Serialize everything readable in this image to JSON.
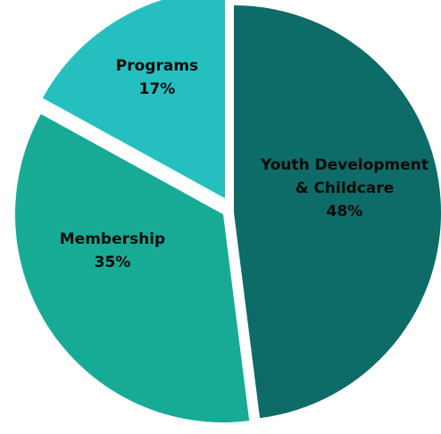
{
  "chart_data": {
    "type": "pie",
    "categories": [
      "Youth Development & Childcare",
      "Membership",
      "Programs"
    ],
    "values": [
      48,
      35,
      17
    ],
    "slices": [
      {
        "name": "Youth Development & Childcare",
        "value": 48,
        "label_lines": [
          "Youth Development",
          "& Childcare",
          "48%"
        ],
        "color": "#0d6b68"
      },
      {
        "name": "Membership",
        "value": 35,
        "label_lines": [
          "Membership",
          "35%"
        ],
        "color": "#17ab96"
      },
      {
        "name": "Programs",
        "value": 17,
        "label_lines": [
          "Programs",
          "17%"
        ],
        "color": "#26bfbf"
      }
    ],
    "title": "",
    "legend": "none",
    "exploded": true
  }
}
